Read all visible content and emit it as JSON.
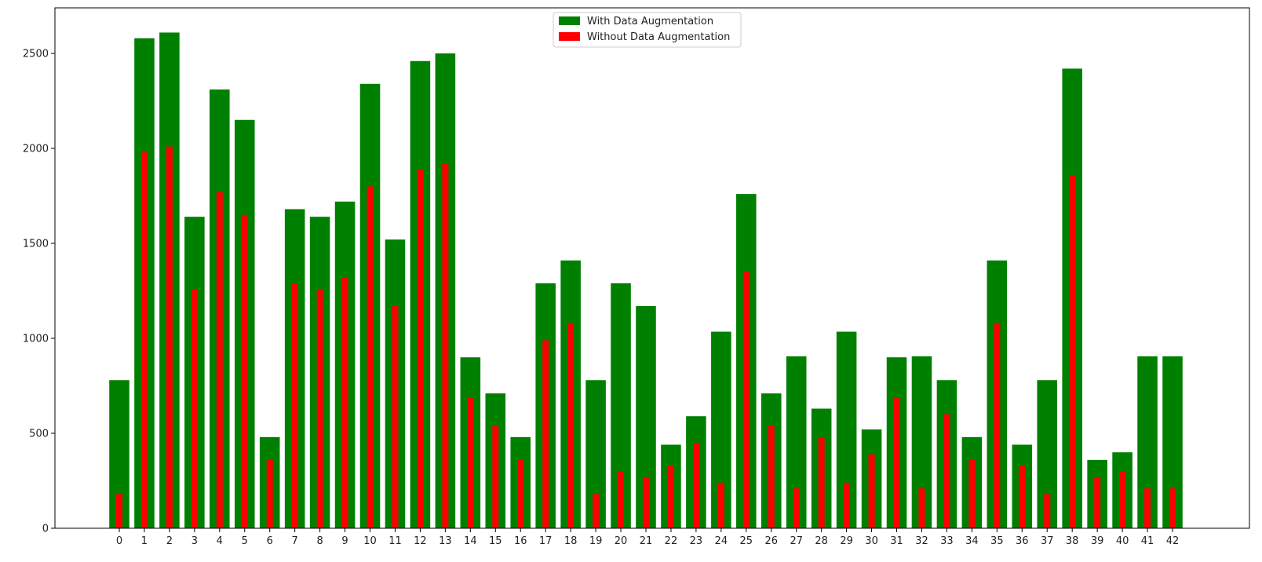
{
  "chart_data": {
    "type": "bar",
    "title": "",
    "xlabel": "",
    "ylabel": "",
    "ylim": [
      0,
      2740
    ],
    "yticks": [
      0,
      500,
      1000,
      1500,
      2000,
      2500
    ],
    "categories": [
      "0",
      "1",
      "2",
      "3",
      "4",
      "5",
      "6",
      "7",
      "8",
      "9",
      "10",
      "11",
      "12",
      "13",
      "14",
      "15",
      "16",
      "17",
      "18",
      "19",
      "20",
      "21",
      "22",
      "23",
      "24",
      "25",
      "26",
      "27",
      "28",
      "29",
      "30",
      "31",
      "32",
      "33",
      "34",
      "35",
      "36",
      "37",
      "38",
      "39",
      "40",
      "41",
      "42"
    ],
    "series": [
      {
        "name": "With Data Augmentation",
        "color": "#008000",
        "values": [
          780,
          2580,
          2610,
          1640,
          2310,
          2150,
          480,
          1680,
          1640,
          1720,
          2340,
          1520,
          2460,
          2500,
          900,
          710,
          480,
          1290,
          1410,
          780,
          1290,
          1170,
          440,
          590,
          1035,
          1760,
          710,
          905,
          630,
          1035,
          520,
          900,
          905,
          780,
          480,
          1410,
          440,
          780,
          2420,
          360,
          400,
          905,
          905
        ]
      },
      {
        "name": "Without Data Augmentation",
        "color": "#ff0000",
        "values": [
          180,
          1980,
          2010,
          1260,
          1770,
          1650,
          360,
          1290,
          1260,
          1320,
          1800,
          1170,
          1890,
          1920,
          690,
          540,
          360,
          990,
          1080,
          180,
          300,
          270,
          330,
          450,
          240,
          1350,
          540,
          210,
          480,
          240,
          390,
          690,
          210,
          600,
          360,
          1080,
          330,
          180,
          1860,
          270,
          300,
          210,
          210
        ]
      }
    ],
    "legend": {
      "placement": "top-center"
    }
  }
}
